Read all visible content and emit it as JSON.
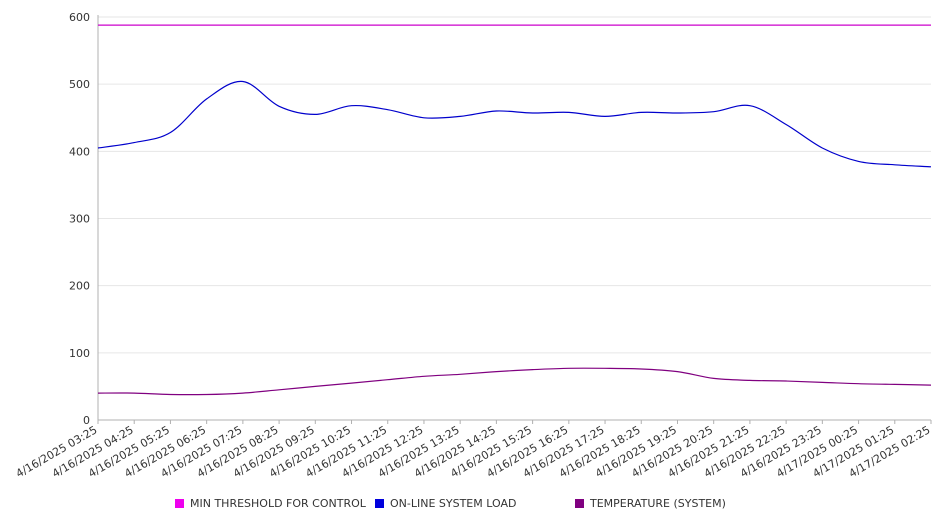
{
  "chart_data": {
    "type": "line",
    "x": [
      "4/16/2025 03:25",
      "4/16/2025 04:25",
      "4/16/2025 05:25",
      "4/16/2025 06:25",
      "4/16/2025 07:25",
      "4/16/2025 08:25",
      "4/16/2025 09:25",
      "4/16/2025 10:25",
      "4/16/2025 11:25",
      "4/16/2025 12:25",
      "4/16/2025 13:25",
      "4/16/2025 14:25",
      "4/16/2025 15:25",
      "4/16/2025 16:25",
      "4/16/2025 17:25",
      "4/16/2025 18:25",
      "4/16/2025 19:25",
      "4/16/2025 20:25",
      "4/16/2025 21:25",
      "4/16/2025 22:25",
      "4/16/2025 23:25",
      "4/17/2025 00:25",
      "4/17/2025 01:25",
      "4/17/2025 02:25"
    ],
    "x_tick_labels": [
      "4/16/2025 03:25",
      "4/16/2025 04:25",
      "4/16/2025 05:25",
      "4/16/2025 06:25",
      "4/16/2025 07:25",
      "4/16/2025 08:25",
      "4/16/2025 09:25",
      "4/16/2025 10:25",
      "4/16/2025 11:25",
      "4/16/2025 12:25",
      "4/16/2025 13:25",
      "4/16/2025 14:25",
      "4/16/2025 15:25",
      "4/16/2025 16:25",
      "4/16/2025 17:25",
      "4/16/2025 18:25",
      "4/16/2025 19:25",
      "4/16/2025 20:25",
      "4/16/2025 21:25",
      "4/16/2025 22:25",
      "4/16/2025 23:25",
      "4/17/2025 00:25",
      "4/17/2025 01:25",
      "4/17/2025 02:25"
    ],
    "y_ticks": [
      "0",
      "100",
      "200",
      "300",
      "400",
      "500",
      "600"
    ],
    "ylim": [
      0,
      600
    ],
    "grid": true,
    "legend_position": "bottom",
    "series": [
      {
        "name": "MIN THRESHOLD FOR CONTROL",
        "color": "#cc00cc",
        "values": [
          588,
          588,
          588,
          588,
          588,
          588,
          588,
          588,
          588,
          588,
          588,
          588,
          588,
          588,
          588,
          588,
          588,
          588,
          588,
          588,
          588,
          588,
          588,
          588
        ]
      },
      {
        "name": "ON-LINE SYSTEM LOAD",
        "color": "#0000cc",
        "values": [
          405,
          413,
          428,
          478,
          504,
          467,
          455,
          468,
          462,
          450,
          452,
          460,
          457,
          458,
          452,
          458,
          457,
          459,
          468,
          440,
          405,
          385,
          380,
          377
        ]
      },
      {
        "name": "TEMPERATURE (SYSTEM)",
        "color": "#800080",
        "values": [
          40,
          40,
          38,
          38,
          40,
          45,
          50,
          55,
          60,
          65,
          68,
          72,
          75,
          77,
          77,
          76,
          72,
          62,
          59,
          58,
          56,
          54,
          53,
          52
        ]
      }
    ]
  }
}
